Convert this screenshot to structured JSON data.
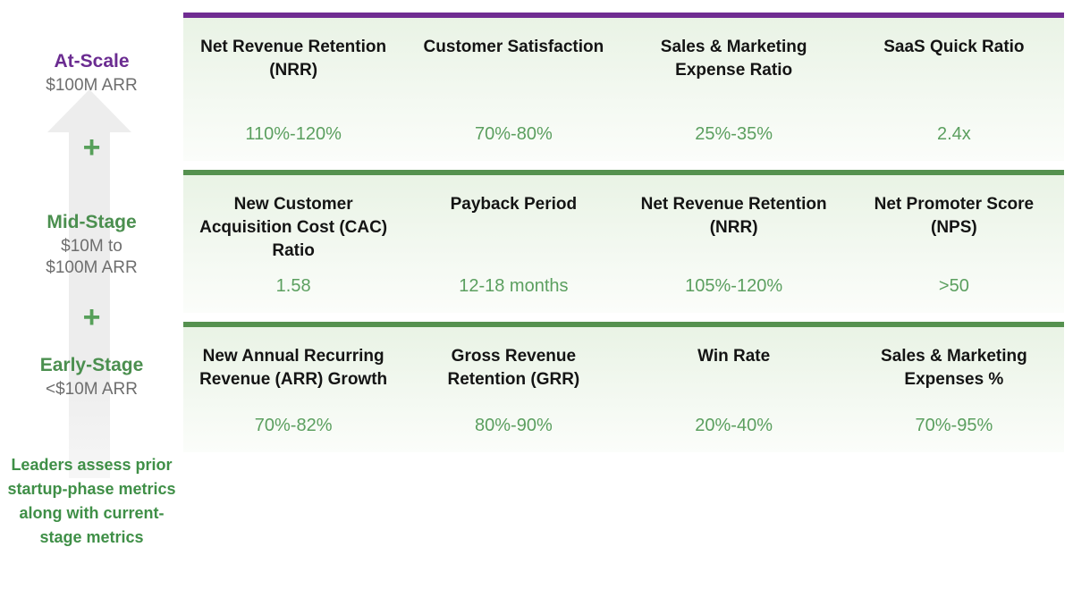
{
  "colors": {
    "stage_purple": "#6b2c91",
    "stage_green": "#4b8f4f",
    "value_green": "#5b9f5f",
    "plus_green": "#57a05a",
    "footer_green": "#3f8f47",
    "row_border_purple": "#6f2c91",
    "row_border_green": "#55914f",
    "row_background_green": "#e9f3e5",
    "arrow_gray": "#ededed"
  },
  "sidebar": {
    "plus": "+",
    "stages": [
      {
        "title": "At-Scale",
        "subtitle": "$100M ARR"
      },
      {
        "title": "Mid-Stage",
        "subtitle": "$10M to $100M ARR"
      },
      {
        "title": "Early-Stage",
        "subtitle": "<$10M ARR"
      }
    ],
    "footer": "Leaders assess prior startup-phase metrics along with current-stage metrics"
  },
  "rows": [
    {
      "stage": "At-Scale",
      "metrics": [
        {
          "title": "Net Revenue Retention (NRR)",
          "value": "110%-120%"
        },
        {
          "title": "Customer Satisfaction",
          "value": "70%-80%"
        },
        {
          "title": "Sales & Marketing Expense Ratio",
          "value": "25%-35%"
        },
        {
          "title": "SaaS Quick Ratio",
          "value": "2.4x"
        }
      ]
    },
    {
      "stage": "Mid-Stage",
      "metrics": [
        {
          "title": "New Customer Acquisition Cost (CAC) Ratio",
          "value": "1.58"
        },
        {
          "title": "Payback Period",
          "value": "12-18 months"
        },
        {
          "title": "Net Revenue Retention (NRR)",
          "value": "105%-120%"
        },
        {
          "title": "Net Promoter Score (NPS)",
          "value": ">50"
        }
      ]
    },
    {
      "stage": "Early-Stage",
      "metrics": [
        {
          "title": "New Annual Recurring Revenue (ARR) Growth",
          "value": "70%-82%"
        },
        {
          "title": "Gross Revenue Retention (GRR)",
          "value": "80%-90%"
        },
        {
          "title": "Win Rate",
          "value": "20%-40%"
        },
        {
          "title": "Sales & Marketing Expenses %",
          "value": "70%-95%"
        }
      ]
    }
  ]
}
